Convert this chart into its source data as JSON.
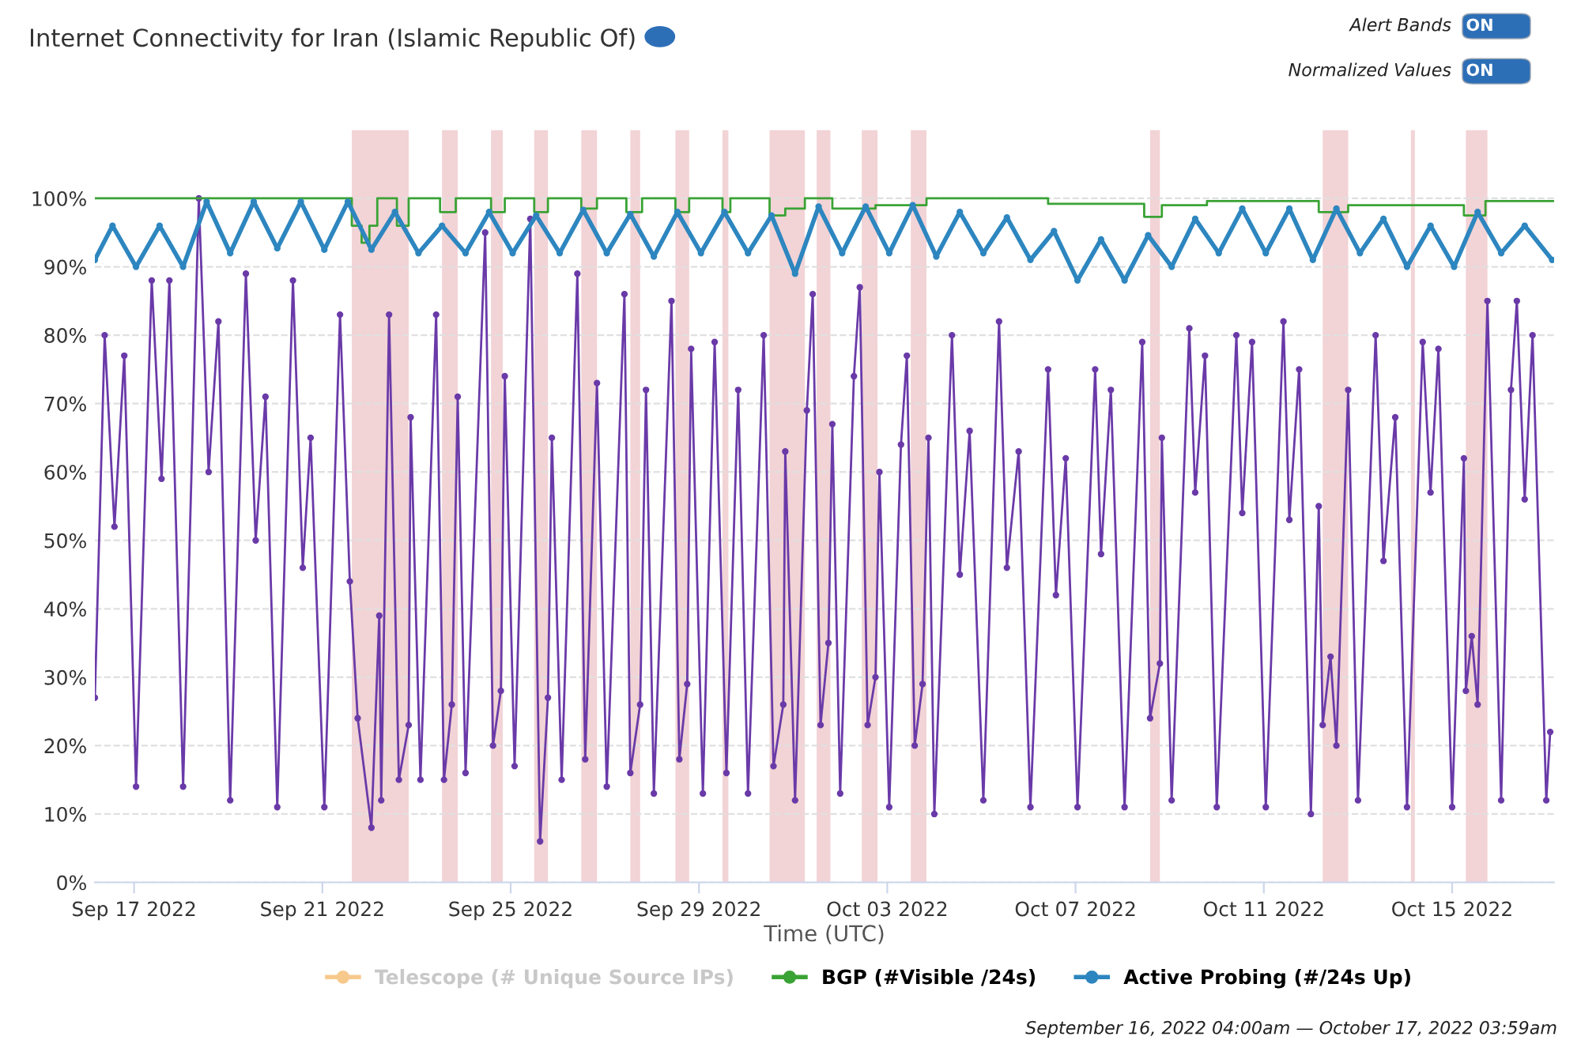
{
  "chart_data": {
    "type": "line",
    "title": "Internet Connectivity for Iran (Islamic Republic Of)",
    "xlabel": "Time (UTC)",
    "annotations": [
      "Alert Bands",
      "ON",
      "Normalized Values",
      "ON",
      "September 16, 2022 04:00am — October 17, 2022 03:59am"
    ],
    "xlim": [
      "2022-09-16T04:00",
      "2022-10-17T04:00"
    ],
    "xticks": [
      {
        "value": "2022-09-17",
        "label": "Sep 17 2022"
      },
      {
        "value": "2022-09-21",
        "label": "Sep 21 2022"
      },
      {
        "value": "2022-09-25",
        "label": "Sep 25 2022"
      },
      {
        "value": "2022-09-29",
        "label": "Sep 29 2022"
      },
      {
        "value": "2022-10-03",
        "label": "Oct 03 2022"
      },
      {
        "value": "2022-10-07",
        "label": "Oct 07 2022"
      },
      {
        "value": "2022-10-11",
        "label": "Oct 11 2022"
      },
      {
        "value": "2022-10-15",
        "label": "Oct 15 2022"
      }
    ],
    "ylim": [
      0,
      110
    ],
    "yticks": [
      {
        "value": 0,
        "label": "0%"
      },
      {
        "value": 10,
        "label": "10%"
      },
      {
        "value": 20,
        "label": "20%"
      },
      {
        "value": 30,
        "label": "30%"
      },
      {
        "value": 40,
        "label": "40%"
      },
      {
        "value": 50,
        "label": "50%"
      },
      {
        "value": 60,
        "label": "60%"
      },
      {
        "value": 70,
        "label": "70%"
      },
      {
        "value": 80,
        "label": "80%"
      },
      {
        "value": 90,
        "label": "90%"
      },
      {
        "value": 100,
        "label": "100%"
      }
    ],
    "grid": "y",
    "legend": "bottom",
    "bands": [
      {
        "axis": "x",
        "from": "2022-09-21T15:00",
        "to": "2022-09-22T20:00",
        "color": "#f2d3d6"
      },
      {
        "axis": "x",
        "from": "2022-09-23T13:00",
        "to": "2022-09-23T21:00",
        "color": "#f2d3d6"
      },
      {
        "axis": "x",
        "from": "2022-09-24T14:00",
        "to": "2022-09-24T20:00",
        "color": "#f2d3d6"
      },
      {
        "axis": "x",
        "from": "2022-09-25T12:00",
        "to": "2022-09-25T19:00",
        "color": "#f2d3d6"
      },
      {
        "axis": "x",
        "from": "2022-09-26T12:00",
        "to": "2022-09-26T20:00",
        "color": "#f2d3d6"
      },
      {
        "axis": "x",
        "from": "2022-09-27T13:00",
        "to": "2022-09-27T18:00",
        "color": "#f2d3d6"
      },
      {
        "axis": "x",
        "from": "2022-09-28T12:00",
        "to": "2022-09-28T19:00",
        "color": "#f2d3d6"
      },
      {
        "axis": "x",
        "from": "2022-09-29T12:00",
        "to": "2022-09-29T15:00",
        "color": "#f2d3d6"
      },
      {
        "axis": "x",
        "from": "2022-09-30T12:00",
        "to": "2022-10-01T06:00",
        "color": "#f2d3d6"
      },
      {
        "axis": "x",
        "from": "2022-10-01T12:00",
        "to": "2022-10-01T19:00",
        "color": "#f2d3d6"
      },
      {
        "axis": "x",
        "from": "2022-10-02T11:00",
        "to": "2022-10-02T19:00",
        "color": "#f2d3d6"
      },
      {
        "axis": "x",
        "from": "2022-10-03T12:00",
        "to": "2022-10-03T20:00",
        "color": "#f2d3d6"
      },
      {
        "axis": "x",
        "from": "2022-10-08T14:00",
        "to": "2022-10-08T19:00",
        "color": "#f2d3d6"
      },
      {
        "axis": "x",
        "from": "2022-10-12T06:00",
        "to": "2022-10-12T19:00",
        "color": "#f2d3d6"
      },
      {
        "axis": "x",
        "from": "2022-10-14T03:00",
        "to": "2022-10-14T05:00",
        "color": "#f2d3d6"
      },
      {
        "axis": "x",
        "from": "2022-10-15T07:00",
        "to": "2022-10-15T18:00",
        "color": "#f2d3d6"
      }
    ],
    "series": [
      {
        "color": "#6a3aa8",
        "marker": "circle",
        "x": [
          "2022-09-16T04:00",
          "2022-09-16T09:00",
          "2022-09-16T14:00",
          "2022-09-16T19:00",
          "2022-09-17T01:00",
          "2022-09-17T09:00",
          "2022-09-17T14:00",
          "2022-09-17T18:00",
          "2022-09-18T01:00",
          "2022-09-18T09:00",
          "2022-09-18T14:00",
          "2022-09-18T19:00",
          "2022-09-19T01:00",
          "2022-09-19T09:00",
          "2022-09-19T14:00",
          "2022-09-19T19:00",
          "2022-09-20T01:00",
          "2022-09-20T09:00",
          "2022-09-20T14:00",
          "2022-09-20T18:00",
          "2022-09-21T01:00",
          "2022-09-21T09:00",
          "2022-09-21T14:00",
          "2022-09-21T18:00",
          "2022-09-22T01:00",
          "2022-09-22T05:00",
          "2022-09-22T06:00",
          "2022-09-22T10:00",
          "2022-09-22T15:00",
          "2022-09-22T20:00",
          "2022-09-22T21:00",
          "2022-09-23T02:00",
          "2022-09-23T10:00",
          "2022-09-23T14:00",
          "2022-09-23T18:00",
          "2022-09-23T21:00",
          "2022-09-24T01:00",
          "2022-09-24T11:00",
          "2022-09-24T15:00",
          "2022-09-24T19:00",
          "2022-09-24T21:00",
          "2022-09-25T02:00",
          "2022-09-25T10:00",
          "2022-09-25T15:00",
          "2022-09-25T19:00",
          "2022-09-25T21:00",
          "2022-09-26T02:00",
          "2022-09-26T10:00",
          "2022-09-26T14:00",
          "2022-09-26T20:00",
          "2022-09-27T01:00",
          "2022-09-27T10:00",
          "2022-09-27T13:00",
          "2022-09-27T18:00",
          "2022-09-27T21:00",
          "2022-09-28T01:00",
          "2022-09-28T10:00",
          "2022-09-28T14:00",
          "2022-09-28T18:00",
          "2022-09-28T20:00",
          "2022-09-29T02:00",
          "2022-09-29T08:00",
          "2022-09-29T14:00",
          "2022-09-29T20:00",
          "2022-09-30T01:00",
          "2022-09-30T09:00",
          "2022-09-30T14:00",
          "2022-09-30T19:00",
          "2022-09-30T20:00",
          "2022-10-01T01:00",
          "2022-10-01T07:00",
          "2022-10-01T10:00",
          "2022-10-01T14:00",
          "2022-10-01T18:00",
          "2022-10-01T20:00",
          "2022-10-02T00:00",
          "2022-10-02T07:00",
          "2022-10-02T10:00",
          "2022-10-02T14:00",
          "2022-10-02T18:00",
          "2022-10-02T20:00",
          "2022-10-03T01:00",
          "2022-10-03T07:00",
          "2022-10-03T10:00",
          "2022-10-03T14:00",
          "2022-10-03T18:00",
          "2022-10-03T21:00",
          "2022-10-04T00:00",
          "2022-10-04T09:00",
          "2022-10-04T13:00",
          "2022-10-04T18:00",
          "2022-10-05T01:00",
          "2022-10-05T09:00",
          "2022-10-05T13:00",
          "2022-10-05T19:00",
          "2022-10-06T01:00",
          "2022-10-06T10:00",
          "2022-10-06T14:00",
          "2022-10-06T19:00",
          "2022-10-07T01:00",
          "2022-10-07T10:00",
          "2022-10-07T13:00",
          "2022-10-07T18:00",
          "2022-10-08T01:00",
          "2022-10-08T10:00",
          "2022-10-08T14:00",
          "2022-10-08T19:00",
          "2022-10-08T20:00",
          "2022-10-09T01:00",
          "2022-10-09T10:00",
          "2022-10-09T13:00",
          "2022-10-09T18:00",
          "2022-10-10T00:00",
          "2022-10-10T10:00",
          "2022-10-10T13:00",
          "2022-10-10T18:00",
          "2022-10-11T01:00",
          "2022-10-11T10:00",
          "2022-10-11T13:00",
          "2022-10-11T18:00",
          "2022-10-12T00:00",
          "2022-10-12T04:00",
          "2022-10-12T06:00",
          "2022-10-12T10:00",
          "2022-10-12T13:00",
          "2022-10-12T19:00",
          "2022-10-13T00:00",
          "2022-10-13T09:00",
          "2022-10-13T13:00",
          "2022-10-13T19:00",
          "2022-10-14T01:00",
          "2022-10-14T09:00",
          "2022-10-14T13:00",
          "2022-10-14T17:00",
          "2022-10-15T00:00",
          "2022-10-15T06:00",
          "2022-10-15T07:00",
          "2022-10-15T10:00",
          "2022-10-15T13:00",
          "2022-10-15T18:00",
          "2022-10-16T01:00",
          "2022-10-16T06:00",
          "2022-10-16T09:00",
          "2022-10-16T13:00",
          "2022-10-16T17:00",
          "2022-10-17T00:00",
          "2022-10-17T02:00"
        ],
        "values": [
          27,
          80,
          52,
          77,
          14,
          88,
          59,
          88,
          14,
          100,
          60,
          82,
          12,
          89,
          50,
          71,
          11,
          88,
          46,
          65,
          11,
          83,
          44,
          24,
          8,
          39,
          12,
          83,
          15,
          23,
          68,
          15,
          83,
          15,
          26,
          71,
          16,
          95,
          20,
          28,
          74,
          17,
          97,
          6,
          27,
          65,
          15,
          89,
          18,
          73,
          14,
          86,
          16,
          26,
          72,
          13,
          85,
          18,
          29,
          78,
          13,
          79,
          16,
          72,
          13,
          80,
          17,
          26,
          63,
          12,
          69,
          86,
          23,
          35,
          67,
          13,
          74,
          87,
          23,
          30,
          60,
          11,
          64,
          77,
          20,
          29,
          65,
          10,
          80,
          45,
          66,
          12,
          82,
          46,
          63,
          11,
          75,
          42,
          62,
          11,
          75,
          48,
          72,
          11,
          79,
          24,
          32,
          65,
          12,
          81,
          57,
          77,
          11,
          80,
          54,
          79,
          11,
          82,
          53,
          75,
          10,
          55,
          23,
          33,
          20,
          72,
          12,
          80,
          47,
          68,
          11,
          79,
          57,
          78,
          11,
          62,
          28,
          36,
          26,
          85,
          12,
          72,
          85,
          56,
          80,
          12,
          22
        ]
      },
      {
        "name": "Telescope (# Unique Source IPs)",
        "color": "#f7c98d"
      },
      {
        "type": "step",
        "name": "BGP (#Visible /24s)",
        "color": "#3aa335",
        "x": [
          "2022-09-16T04:00",
          "2022-09-21T15:00",
          "2022-09-21T20:00",
          "2022-09-22T00:00",
          "2022-09-22T04:00",
          "2022-09-22T14:00",
          "2022-09-22T20:00",
          "2022-09-23T12:00",
          "2022-09-23T20:00",
          "2022-09-24T14:00",
          "2022-09-24T21:00",
          "2022-09-25T12:00",
          "2022-09-25T19:00",
          "2022-09-26T12:00",
          "2022-09-26T20:00",
          "2022-09-27T11:00",
          "2022-09-27T19:00",
          "2022-09-28T12:00",
          "2022-09-28T19:00",
          "2022-09-29T12:00",
          "2022-09-29T16:00",
          "2022-09-30T12:00",
          "2022-09-30T20:00",
          "2022-10-01T06:00",
          "2022-10-01T20:00",
          "2022-10-02T18:00",
          "2022-10-03T20:00",
          "2022-10-06T10:00",
          "2022-10-08T11:00",
          "2022-10-08T20:00",
          "2022-10-09T19:00",
          "2022-10-12T04:00",
          "2022-10-12T19:00",
          "2022-10-15T06:00",
          "2022-10-15T17:00",
          "2022-10-17T04:00"
        ],
        "values": [
          100,
          96,
          93.5,
          96,
          100,
          96,
          100,
          98,
          100,
          98,
          100,
          98,
          100,
          98.5,
          100,
          98,
          100,
          98,
          100,
          98,
          100,
          97.5,
          98.5,
          100,
          98.5,
          99,
          100,
          99.2,
          97.3,
          99,
          99.6,
          98,
          99,
          97.5,
          99.6,
          99.6
        ]
      },
      {
        "name": "Active Probing (#/24s Up)",
        "color": "#2d86bf",
        "marker": "circle",
        "x": [
          "2022-09-16T04:00",
          "2022-09-16T13:00",
          "2022-09-17T01:00",
          "2022-09-17T13:00",
          "2022-09-18T01:00",
          "2022-09-18T13:00",
          "2022-09-19T01:00",
          "2022-09-19T13:00",
          "2022-09-20T01:00",
          "2022-09-20T13:00",
          "2022-09-21T01:00",
          "2022-09-21T13:00",
          "2022-09-22T01:00",
          "2022-09-22T13:00",
          "2022-09-23T01:00",
          "2022-09-23T13:00",
          "2022-09-24T01:00",
          "2022-09-24T13:00",
          "2022-09-25T01:00",
          "2022-09-25T13:00",
          "2022-09-26T01:00",
          "2022-09-26T13:00",
          "2022-09-27T01:00",
          "2022-09-27T13:00",
          "2022-09-28T01:00",
          "2022-09-28T13:00",
          "2022-09-29T01:00",
          "2022-09-29T13:00",
          "2022-09-30T01:00",
          "2022-09-30T13:00",
          "2022-10-01T01:00",
          "2022-10-01T13:00",
          "2022-10-02T01:00",
          "2022-10-02T13:00",
          "2022-10-03T01:00",
          "2022-10-03T13:00",
          "2022-10-04T01:00",
          "2022-10-04T13:00",
          "2022-10-05T01:00",
          "2022-10-05T13:00",
          "2022-10-06T01:00",
          "2022-10-06T13:00",
          "2022-10-07T01:00",
          "2022-10-07T13:00",
          "2022-10-08T01:00",
          "2022-10-08T13:00",
          "2022-10-09T01:00",
          "2022-10-09T13:00",
          "2022-10-10T01:00",
          "2022-10-10T13:00",
          "2022-10-11T01:00",
          "2022-10-11T13:00",
          "2022-10-12T01:00",
          "2022-10-12T13:00",
          "2022-10-13T01:00",
          "2022-10-13T13:00",
          "2022-10-14T01:00",
          "2022-10-14T13:00",
          "2022-10-15T01:00",
          "2022-10-15T13:00",
          "2022-10-16T01:00",
          "2022-10-16T13:00",
          "2022-10-17T03:00"
        ],
        "values": [
          91,
          96,
          90,
          96,
          90,
          99.5,
          92,
          99.5,
          92.7,
          99.5,
          92.5,
          99.5,
          92.5,
          98,
          92,
          96,
          92,
          98,
          92,
          97.5,
          92,
          98.3,
          92,
          97.7,
          91.5,
          98,
          92,
          98,
          92,
          97.5,
          89,
          98.8,
          92,
          98.8,
          92,
          99,
          91.5,
          98,
          92,
          97.2,
          91,
          95.2,
          88,
          94,
          88,
          94.6,
          90,
          97,
          92,
          98.5,
          92,
          98.5,
          91,
          98.5,
          92,
          97,
          90,
          96,
          90,
          98,
          92,
          96,
          91
        ]
      }
    ]
  }
}
